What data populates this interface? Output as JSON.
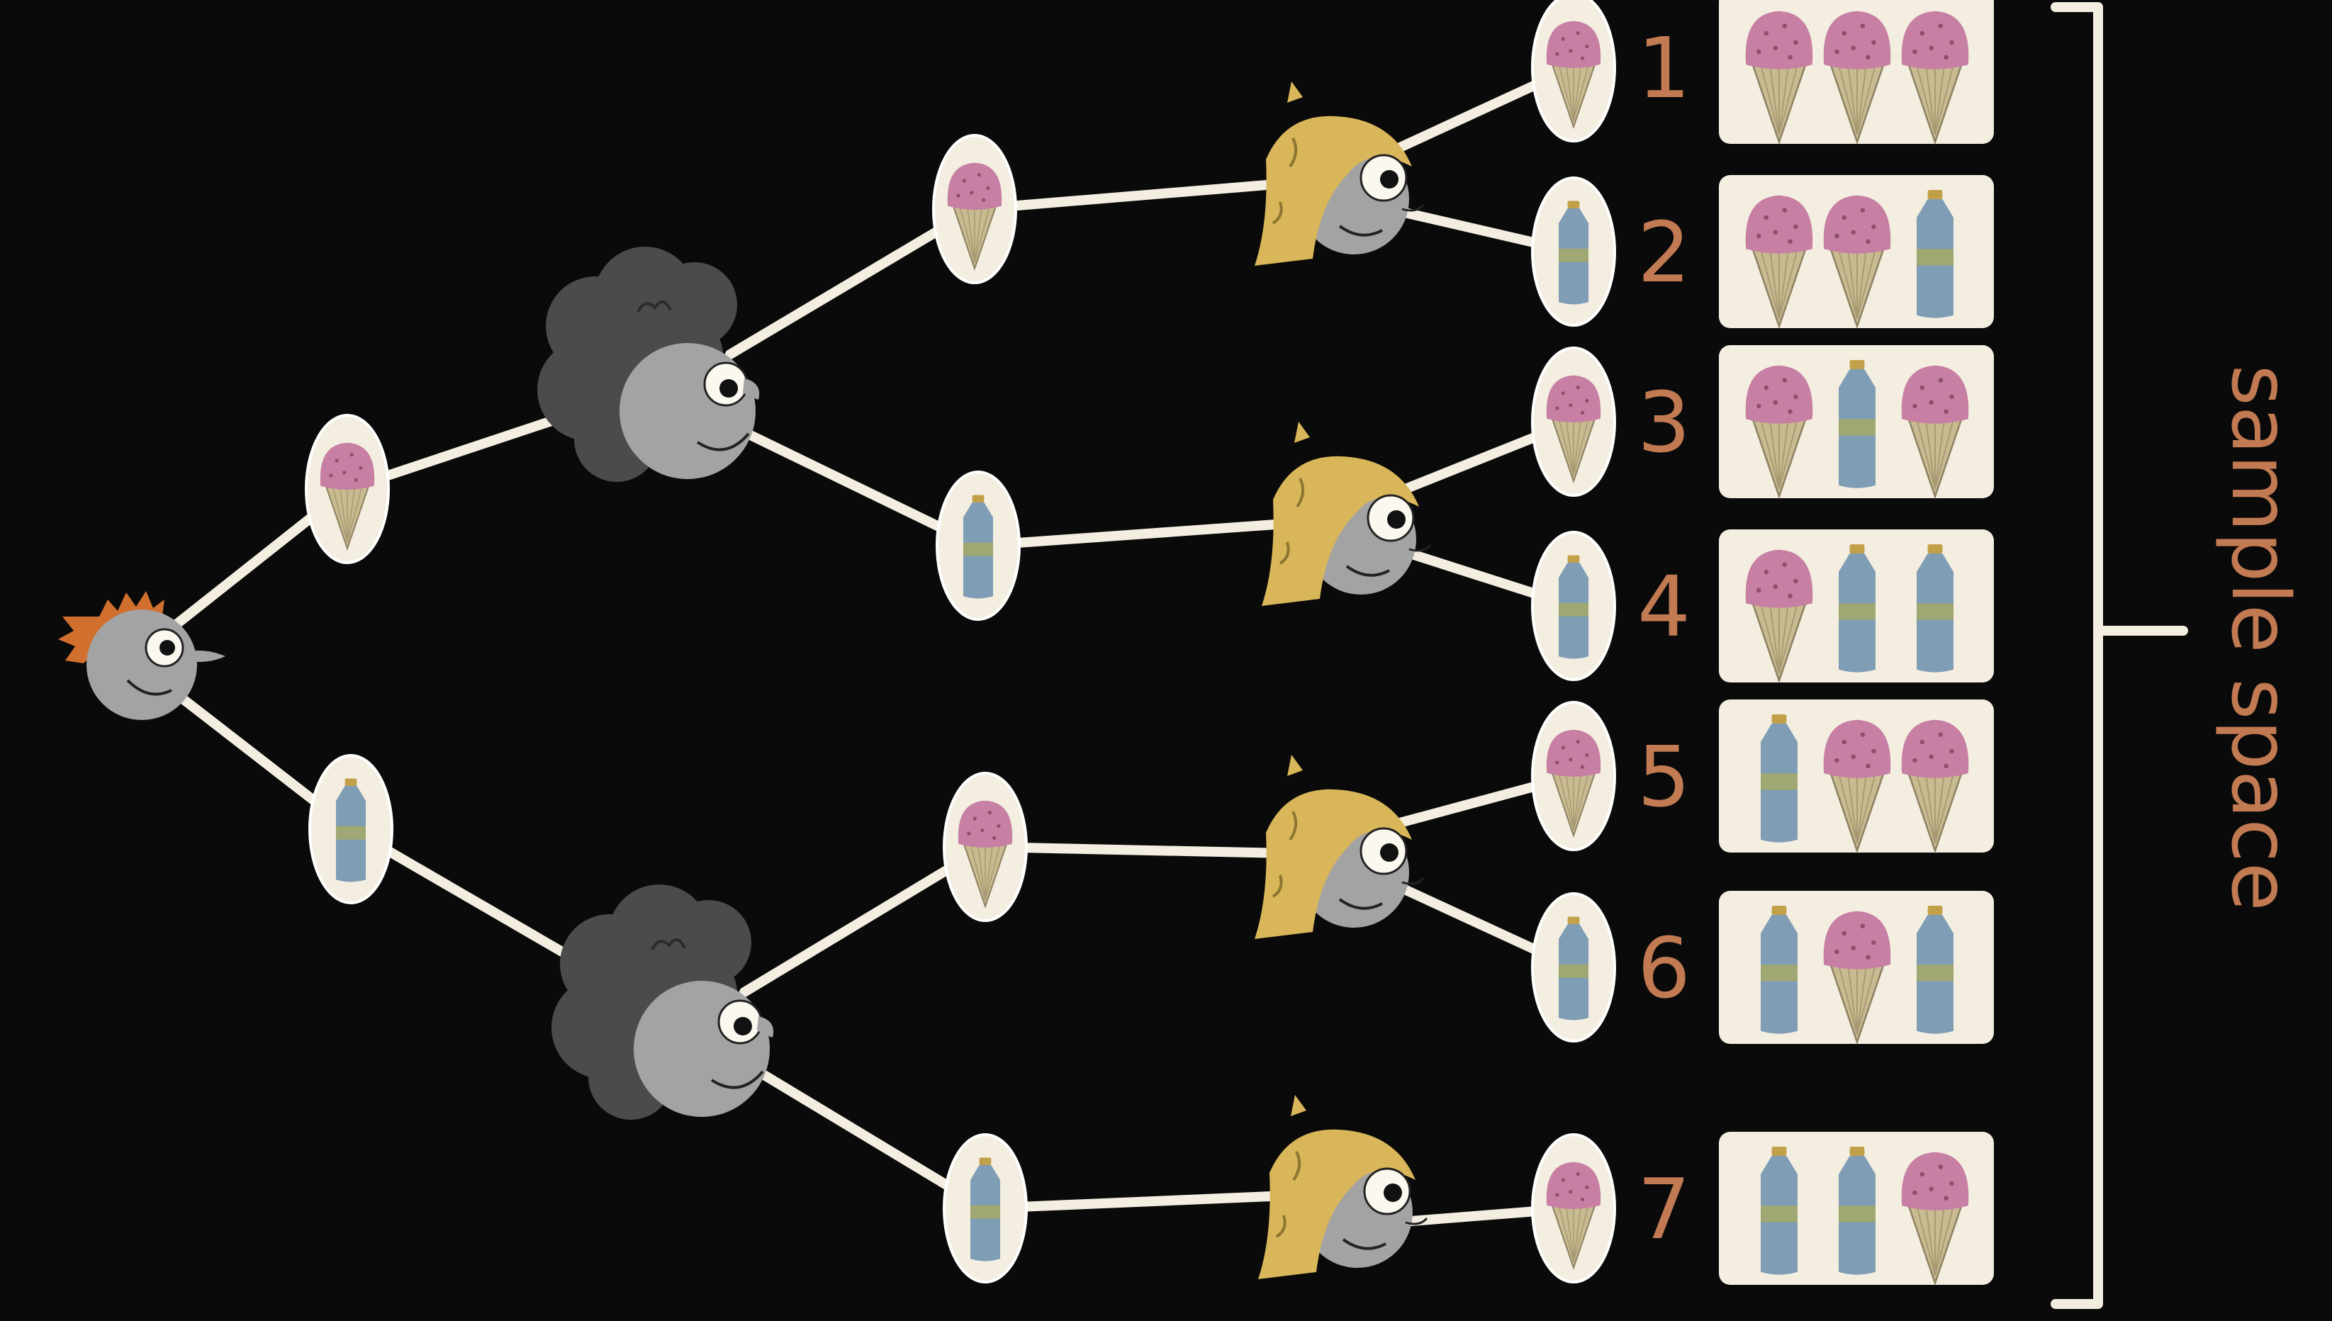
{
  "title": "",
  "annotation": {
    "label": "sample space"
  },
  "colors": {
    "background": "#0a0a0a",
    "line": "#f3eee0",
    "cream": "#f3eee0",
    "number": "#c27a52",
    "ice_cream_scoop": "#c77fa3",
    "cone": "#c9bb91",
    "bottle": "#7f9db5",
    "bottle_label": "#a3a96a",
    "bottle_cap": "#c2a04a",
    "face": "#a3a3a3",
    "hair_red": "#d1702e",
    "hair_dark": "#4b4b4b",
    "hair_blond": "#d9b65a"
  },
  "people": [
    "red-haired-child",
    "curly-haired-child",
    "blond-child"
  ],
  "choices": [
    "ice-cream",
    "water-bottle"
  ],
  "outcomes": [
    {
      "number": "1",
      "items": [
        "ice-cream",
        "ice-cream",
        "ice-cream"
      ]
    },
    {
      "number": "2",
      "items": [
        "ice-cream",
        "ice-cream",
        "water-bottle"
      ]
    },
    {
      "number": "3",
      "items": [
        "ice-cream",
        "water-bottle",
        "ice-cream"
      ]
    },
    {
      "number": "4",
      "items": [
        "ice-cream",
        "water-bottle",
        "water-bottle"
      ]
    },
    {
      "number": "5",
      "items": [
        "water-bottle",
        "ice-cream",
        "ice-cream"
      ]
    },
    {
      "number": "6",
      "items": [
        "water-bottle",
        "ice-cream",
        "water-bottle"
      ]
    },
    {
      "number": "7",
      "items": [
        "water-bottle",
        "water-bottle",
        "ice-cream"
      ]
    }
  ]
}
